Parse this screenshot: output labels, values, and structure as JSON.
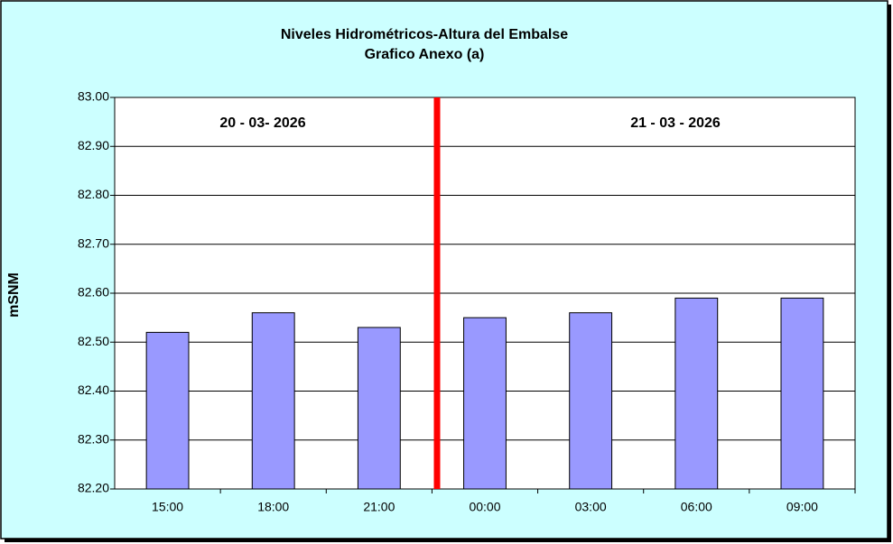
{
  "chart_data": {
    "type": "bar",
    "title": "Niveles Hidrométricos-Altura del Embalse",
    "subtitle": "Grafico Anexo (a)",
    "y_label": "mSNM",
    "annotations": [
      "20 - 03- 2026",
      "21 - 03 - 2026"
    ],
    "categories": [
      "15:00",
      "18:00",
      "21:00",
      "00:00",
      "03:00",
      "06:00",
      "09:00"
    ],
    "values": [
      82.52,
      82.56,
      82.53,
      82.55,
      82.56,
      82.59,
      82.59
    ],
    "color": "#9999ff",
    "ylim": [
      82.2,
      83.0
    ],
    "yticks": [
      {
        "value": 82.2,
        "label": "82.20"
      },
      {
        "value": 82.3,
        "label": "82.30"
      },
      {
        "value": 82.4,
        "label": "82.40"
      },
      {
        "value": 82.5,
        "label": "82.50"
      },
      {
        "value": 82.6,
        "label": "82.60"
      },
      {
        "value": 82.7,
        "label": "82.70"
      },
      {
        "value": 82.8,
        "label": "82.80"
      },
      {
        "value": 82.9,
        "label": "82.90"
      },
      {
        "value": 83.0,
        "label": "83.00"
      }
    ],
    "grid": true
  }
}
